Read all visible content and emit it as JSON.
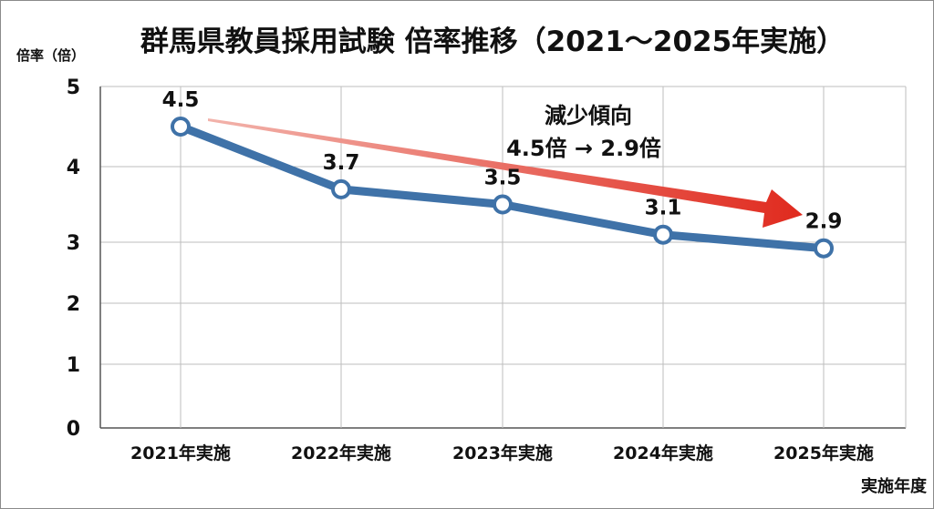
{
  "chart_data": {
    "type": "line",
    "title": "群馬県教員採用試験 倍率推移（2021〜2025年実施）",
    "ylabel": "倍率（倍）",
    "xlabel": "実施年度",
    "categories": [
      "2021年実施",
      "2022年実施",
      "2023年実施",
      "2024年実施",
      "2025年実施"
    ],
    "values": [
      4.5,
      3.7,
      3.5,
      3.1,
      2.9
    ],
    "data_labels": [
      "4.5",
      "3.7",
      "3.5",
      "3.1",
      "2.9"
    ],
    "yticks": [
      "0",
      "1",
      "2",
      "3",
      "4",
      "5"
    ],
    "ylim": [
      0,
      5
    ],
    "grid": true,
    "legend": "none",
    "annotation": {
      "line1": "減少傾向",
      "line2": "4.5倍 → 2.9倍"
    },
    "colors": {
      "line": "#3f72a8",
      "marker_fill": "#ffffff",
      "arrow": "#e02a1e",
      "grid": "#bdbdbd"
    }
  }
}
